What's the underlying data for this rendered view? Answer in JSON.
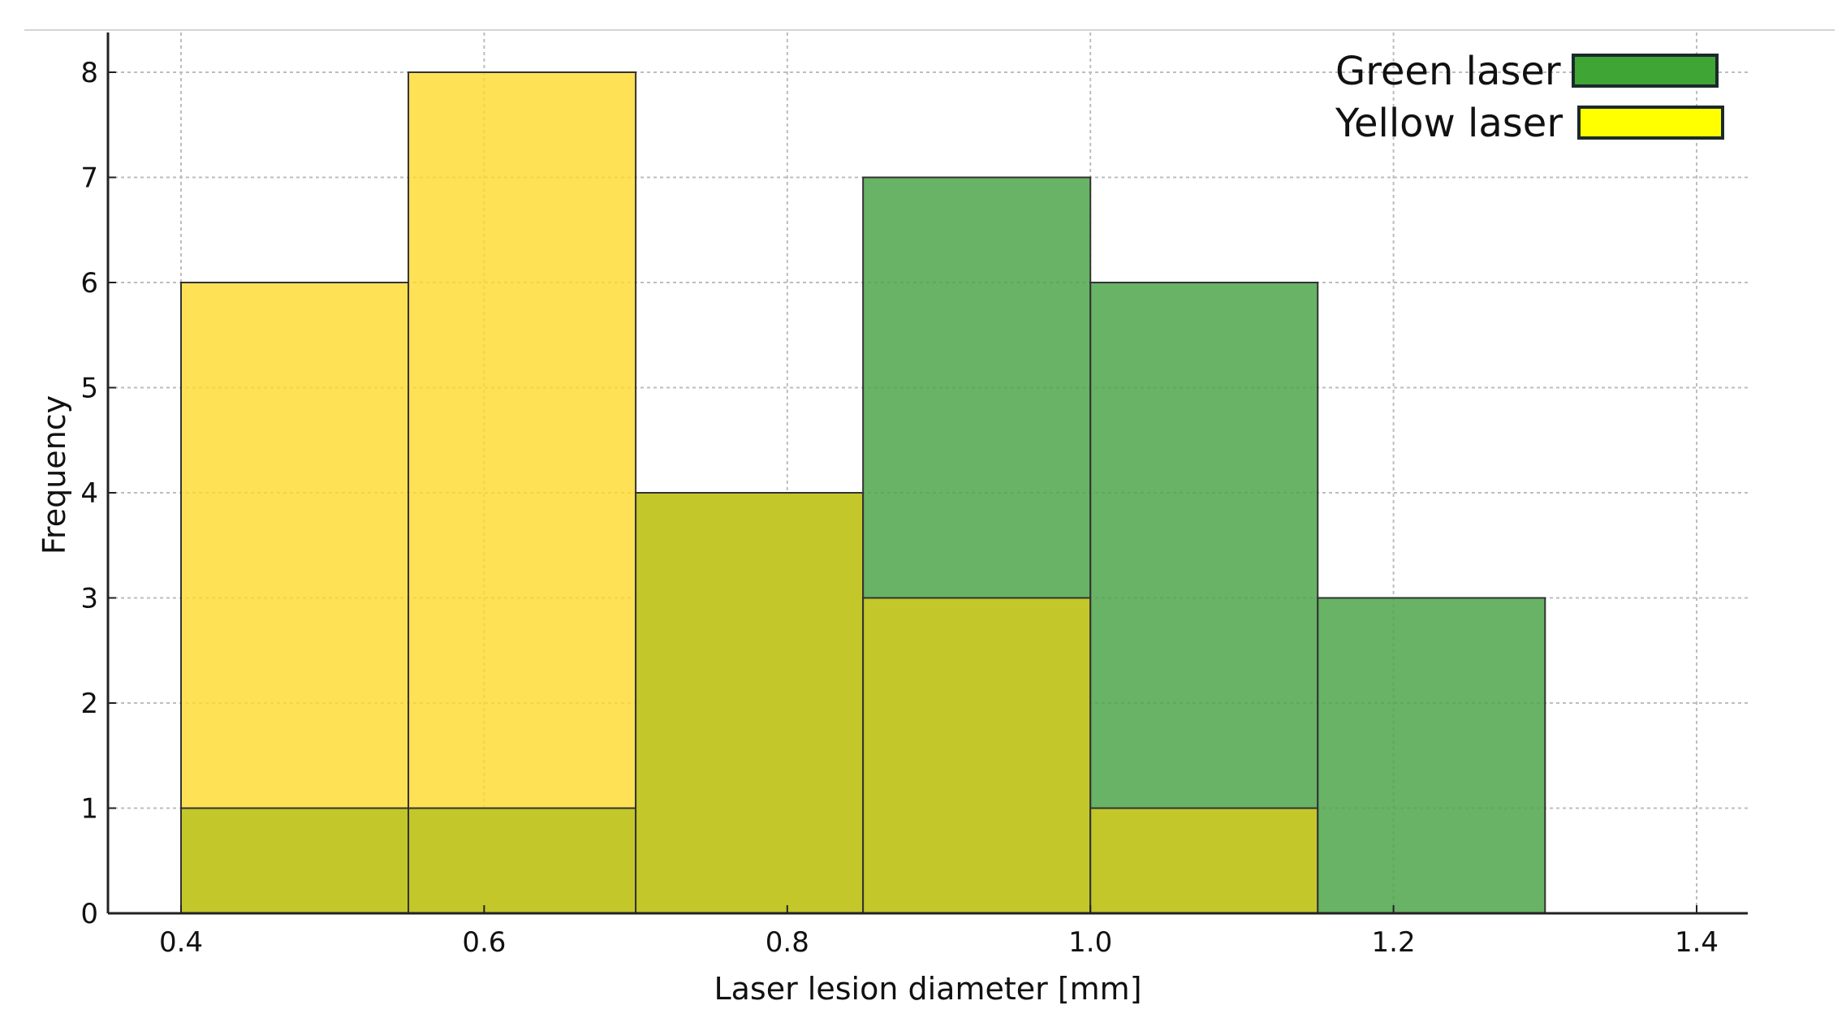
{
  "chart_data": {
    "type": "bar",
    "subtype": "overlapping-histogram",
    "title": "",
    "xlabel": "Laser lesion diameter [mm]",
    "ylabel": "Frequency",
    "xlim": [
      0.35,
      1.5
    ],
    "ylim": [
      0,
      8.4
    ],
    "x_ticks": [
      {
        "value": 0.4,
        "label": "0.4"
      },
      {
        "value": 0.6,
        "label": "0.6"
      },
      {
        "value": 0.8,
        "label": "0.8"
      },
      {
        "value": 1.0,
        "label": "1.0"
      },
      {
        "value": 1.2,
        "label": "1.2"
      },
      {
        "value": 1.4,
        "label": "1.4"
      }
    ],
    "y_ticks": [
      {
        "value": 0,
        "label": "0"
      },
      {
        "value": 1,
        "label": "1"
      },
      {
        "value": 2,
        "label": "2"
      },
      {
        "value": 3,
        "label": "3"
      },
      {
        "value": 4,
        "label": "4"
      },
      {
        "value": 5,
        "label": "5"
      },
      {
        "value": 6,
        "label": "6"
      },
      {
        "value": 7,
        "label": "7"
      },
      {
        "value": 8,
        "label": "8"
      }
    ],
    "bin_edges": [
      0.4,
      0.55,
      0.7,
      0.85,
      1.0,
      1.15,
      1.3
    ],
    "series": [
      {
        "name": "Green laser",
        "legend_color": "#3fa535",
        "fill": "#4ea64a",
        "values": [
          1,
          1,
          4,
          7,
          6,
          3
        ]
      },
      {
        "name": "Yellow laser",
        "legend_color": "#ffff00",
        "fill": "#ffd92a",
        "values": [
          6,
          8,
          4,
          3,
          1,
          0
        ]
      }
    ],
    "overlap_color": "#c3c72a",
    "grid": true,
    "legend_position": "top-right"
  }
}
